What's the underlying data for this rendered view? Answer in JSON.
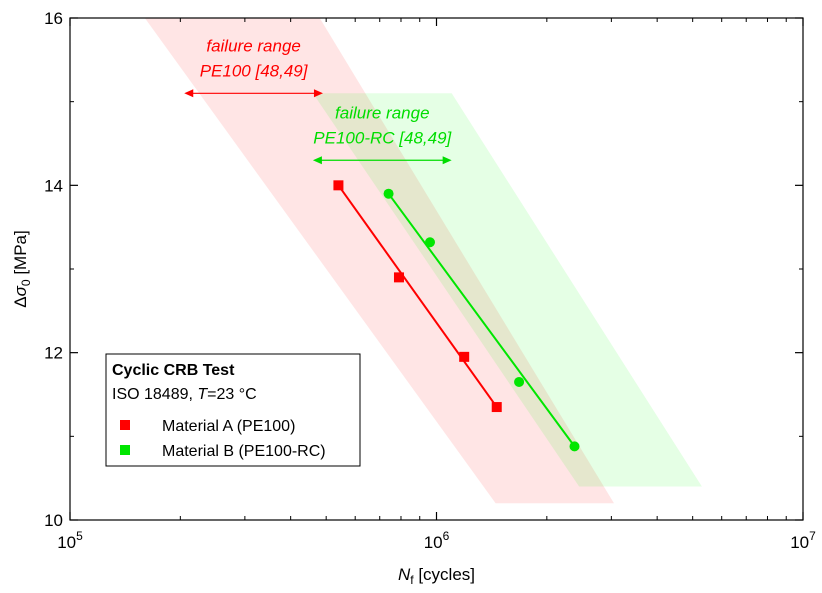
{
  "chart_data": {
    "type": "scatter",
    "x_scale": "log",
    "y_scale": "linear",
    "xlim": [
      100000,
      10000000
    ],
    "ylim": [
      10,
      16
    ],
    "x_ticks": [
      100000,
      1000000,
      10000000
    ],
    "x_tick_labels": [
      {
        "base": "10",
        "exp": "5"
      },
      {
        "base": "10",
        "exp": "6"
      },
      {
        "base": "10",
        "exp": "7"
      }
    ],
    "y_ticks": [
      10,
      12,
      14,
      16
    ],
    "y_tick_labels": [
      "10",
      "12",
      "14",
      "16"
    ],
    "xlabel": {
      "main": "N",
      "sub": "f",
      "unit": "[cycles]"
    },
    "ylabel": {
      "main": "Δσ",
      "sub": "0",
      "unit": "[MPa]"
    },
    "grid": false,
    "legend": {
      "position": "bottom-left",
      "title": "Cyclic CRB Test",
      "subtitle_pre": "ISO 18489, ",
      "subtitle_var": "T",
      "subtitle_post": "=23 °C",
      "entries": [
        "Material A (PE100)",
        "Material B (PE100-RC)"
      ]
    },
    "series": [
      {
        "name": "Material A (PE100)",
        "color": "#ff0000",
        "marker": "square",
        "x": [
          540000,
          790000,
          1190000,
          1460000
        ],
        "y": [
          14.0,
          12.9,
          11.95,
          11.35
        ],
        "fit": {
          "x": [
            540000,
            1460000
          ],
          "y": [
            14.0,
            11.35
          ]
        }
      },
      {
        "name": "Material B (PE100-RC)",
        "color": "#00e600",
        "marker": "circle",
        "x": [
          740000,
          960000,
          1680000,
          2380000
        ],
        "y": [
          13.9,
          13.32,
          11.65,
          10.88
        ],
        "fit": {
          "x": [
            740000,
            2380000
          ],
          "y": [
            13.9,
            10.88
          ]
        }
      }
    ],
    "bands": [
      {
        "name": "failure range PE100",
        "color": "#ff0000",
        "opacity": 0.1,
        "polygon": [
          [
            160000,
            16
          ],
          [
            480000,
            16
          ],
          [
            3050000,
            10.2
          ],
          [
            1450000,
            10.2
          ]
        ]
      },
      {
        "name": "failure range PE100-RC",
        "color": "#00ff00",
        "opacity": 0.1,
        "polygon": [
          [
            460000,
            15.1
          ],
          [
            1100000,
            15.1
          ],
          [
            5300000,
            10.4
          ],
          [
            2450000,
            10.4
          ]
        ]
      }
    ],
    "annotations": [
      {
        "line1": "failure range",
        "line2": "PE100 [48,49]",
        "color": "#ff0000",
        "arrow_x": [
          205000,
          490000
        ],
        "arrow_y": 15.1,
        "line1_y": 15.6,
        "line2_y": 15.3
      },
      {
        "line1": "failure range",
        "line2": "PE100-RC [48,49]",
        "color": "#00dd00",
        "arrow_x": [
          460000,
          1100000
        ],
        "arrow_y": 14.3,
        "line1_y": 14.8,
        "line2_y": 14.5
      }
    ]
  }
}
